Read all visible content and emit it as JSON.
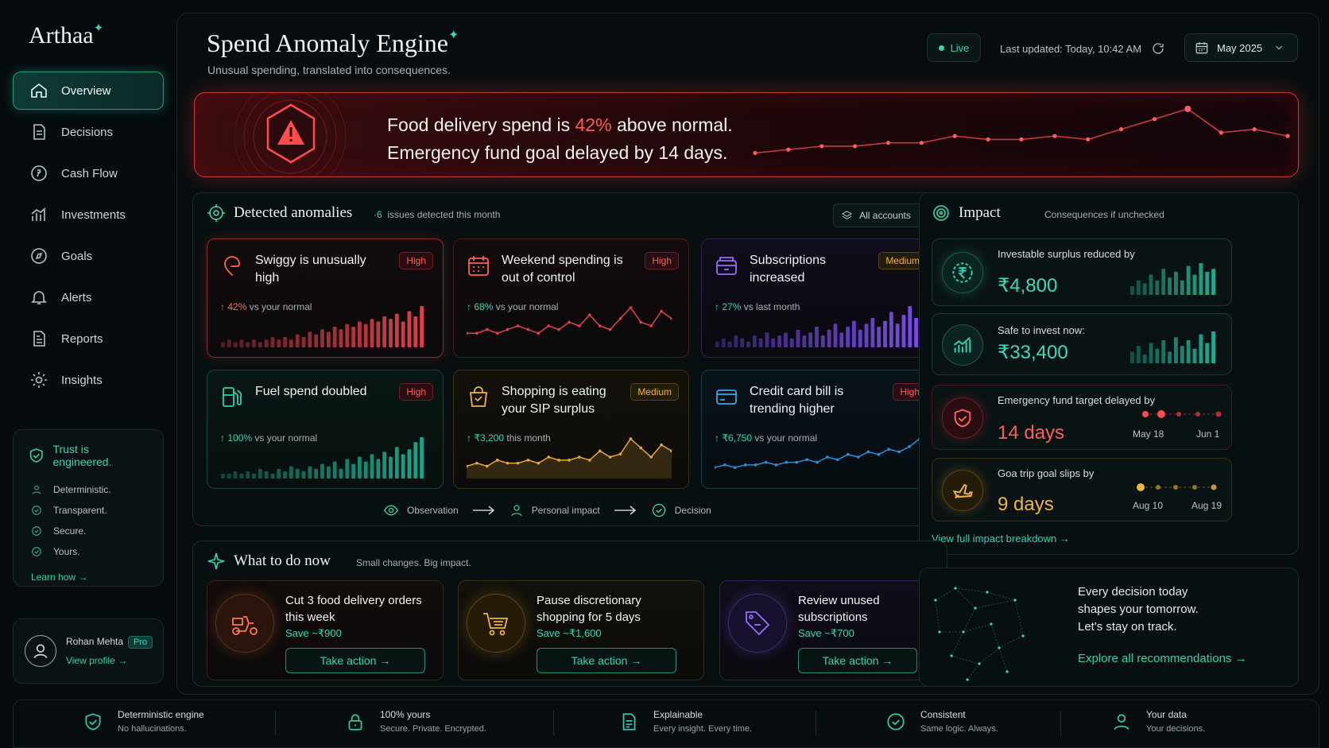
{
  "brand": {
    "name": "Arthaa",
    "star": "✦"
  },
  "nav": [
    {
      "label": "Overview",
      "icon": "home-icon",
      "active": true
    },
    {
      "label": "Decisions",
      "icon": "document-icon"
    },
    {
      "label": "Cash Flow",
      "icon": "currency-circle-icon"
    },
    {
      "label": "Investments",
      "icon": "bar-chart-icon"
    },
    {
      "label": "Goals",
      "icon": "compass-icon"
    },
    {
      "label": "Alerts",
      "icon": "bell-icon"
    },
    {
      "label": "Reports",
      "icon": "report-icon"
    },
    {
      "label": "Insights",
      "icon": "gear-icon"
    }
  ],
  "trust": {
    "title": "Trust is engineered.",
    "items": [
      "Deterministic.",
      "Transparent.",
      "Secure.",
      "Yours."
    ],
    "link": "Learn how"
  },
  "profile": {
    "name": "Rohan Mehta",
    "badge": "Pro",
    "link": "View profile"
  },
  "header": {
    "title": "Spend Anomaly Engine",
    "subtitle": "Unusual spending, translated into consequences.",
    "live": "Live",
    "updated": "Last updated: Today, 10:42 AM",
    "month": "May 2025"
  },
  "banner": {
    "line1_pre": "Food delivery spend is ",
    "line1_pct": "42%",
    "line1_post": " above normal.",
    "line2": "Emergency fund goal delayed by 14 days.",
    "trend": [
      2,
      3,
      4,
      4,
      5,
      5,
      7,
      6,
      6,
      7,
      6,
      9,
      12,
      15,
      8,
      9,
      7
    ]
  },
  "anomalies": {
    "title": "Detected anomalies",
    "count": "6",
    "count_label": "issues detected this month",
    "filter": "All accounts",
    "cards": [
      {
        "title": "Swiggy is unusually high",
        "severity": "High",
        "stat_value": "42%",
        "stat_label": "vs your normal",
        "chart": "bar",
        "color": "#e0414b",
        "values": [
          2,
          3,
          2,
          3,
          2,
          3,
          2,
          3,
          4,
          3,
          4,
          3,
          5,
          4,
          6,
          5,
          7,
          6,
          8,
          7,
          9,
          8,
          10,
          9,
          11,
          10,
          12,
          11,
          13,
          10,
          14,
          12,
          16
        ]
      },
      {
        "title": "Weekend spending is out of control",
        "severity": "High",
        "stat_value": "68%",
        "stat_label": "vs your normal",
        "chart": "line",
        "color": "#e0414b",
        "values": [
          3,
          3,
          4,
          3,
          4,
          5,
          4,
          3,
          5,
          4,
          6,
          5,
          8,
          5,
          4,
          7,
          10,
          6,
          5,
          9,
          7
        ]
      },
      {
        "title": "Subscriptions increased",
        "severity": "Medium",
        "stat_value": "27%",
        "stat_label": "vs last month",
        "chart": "bar",
        "color": "#7a4de8",
        "values": [
          2,
          3,
          2,
          4,
          3,
          2,
          4,
          3,
          5,
          3,
          4,
          5,
          3,
          6,
          4,
          5,
          7,
          4,
          6,
          8,
          5,
          7,
          9,
          6,
          8,
          10,
          7,
          9,
          12,
          8,
          11,
          14,
          10
        ]
      },
      {
        "title": "Fuel spend doubled",
        "severity": "High",
        "stat_value": "100%",
        "stat_label": "vs your normal",
        "chart": "bar",
        "color": "#1aa88e",
        "values": [
          2,
          2,
          3,
          2,
          3,
          2,
          4,
          3,
          2,
          4,
          3,
          5,
          4,
          3,
          5,
          4,
          6,
          5,
          7,
          4,
          8,
          6,
          9,
          7,
          10,
          8,
          11,
          9,
          13,
          10,
          12,
          15,
          17
        ]
      },
      {
        "title": "Shopping is eating your SIP surplus",
        "severity": "Medium",
        "stat_value": "₹3,200",
        "stat_label": "this month",
        "chart": "area",
        "color": "#e8a93a",
        "values": [
          3,
          4,
          3,
          5,
          4,
          4,
          5,
          4,
          6,
          5,
          5,
          6,
          5,
          8,
          6,
          7,
          12,
          9,
          6,
          10,
          8
        ]
      },
      {
        "title": "Credit card bill is trending higher",
        "severity": "High",
        "stat_value": "₹6,750",
        "stat_label": "vs your normal",
        "chart": "line",
        "color": "#2a8fd6",
        "values": [
          3,
          4,
          3,
          4,
          4,
          5,
          4,
          5,
          5,
          6,
          5,
          7,
          6,
          8,
          7,
          9,
          8,
          10,
          9,
          11,
          14
        ]
      }
    ],
    "flow": [
      "Observation",
      "Personal impact",
      "Decision"
    ]
  },
  "impact": {
    "title": "Impact",
    "subtitle": "Consequences if unchecked",
    "cards": [
      {
        "label": "Investable surplus reduced by",
        "value": "₹4,800",
        "icon": "rupee-icon"
      },
      {
        "label": "Safe to invest now:",
        "value": "₹33,400",
        "icon": "growth-chart-icon"
      },
      {
        "label": "Emergency fund target delayed by",
        "value": "14 days",
        "icon": "shield-icon",
        "from": "May 18",
        "to": "Jun 1"
      },
      {
        "label": "Goa trip goal slips by",
        "value": "9 days",
        "icon": "plane-icon",
        "from": "Aug 10",
        "to": "Aug 19"
      }
    ],
    "link": "View full impact breakdown"
  },
  "actions": {
    "title": "What to do now",
    "subtitle": "Small changes. Big impact.",
    "cards": [
      {
        "title": "Cut 3 food delivery orders this week",
        "save": "Save ~₹900",
        "button": "Take action",
        "icon": "scooter-icon"
      },
      {
        "title": "Pause discretionary shopping for 5 days",
        "save": "Save ~₹1,600",
        "button": "Take action",
        "icon": "cart-icon"
      },
      {
        "title": "Review unused subscriptions",
        "save": "Save ~₹700",
        "button": "Take action",
        "icon": "tag-icon"
      }
    ]
  },
  "promo": {
    "text": "Every decision today shapes your tomorrow. Let's stay on track.",
    "line1": "Every decision today",
    "line2": "shapes your tomorrow.",
    "line3": "Let's stay on track.",
    "link": "Explore all recommendations"
  },
  "footer": [
    {
      "title": "Deterministic engine",
      "sub": "No hallucinations.",
      "icon": "shield-check-icon"
    },
    {
      "title": "100% yours",
      "sub": "Secure. Private. Encrypted.",
      "icon": "lock-icon"
    },
    {
      "title": "Explainable",
      "sub": "Every insight. Every time.",
      "icon": "document-icon"
    },
    {
      "title": "Consistent",
      "sub": "Same logic. Always.",
      "icon": "check-circle-icon"
    },
    {
      "title": "Your data",
      "sub": "Your decisions.",
      "icon": "user-icon"
    }
  ]
}
